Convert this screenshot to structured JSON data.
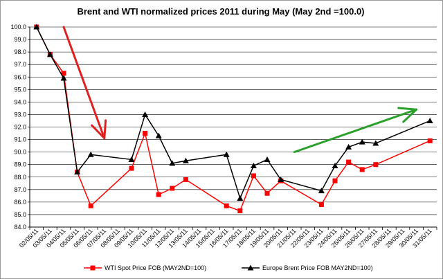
{
  "chart_data": {
    "type": "line",
    "title": "Brent and WTI normalized prices 2011 during May  (May 2nd =100.0)",
    "xlabel": "",
    "ylabel": "",
    "ylim": [
      84.0,
      100.0
    ],
    "y_ticks": [
      "100.0",
      "99.0",
      "98.0",
      "97.0",
      "96.0",
      "95.0",
      "94.0",
      "93.0",
      "92.0",
      "91.0",
      "90.0",
      "89.0",
      "88.0",
      "87.0",
      "86.0",
      "85.0",
      "84.0"
    ],
    "categories": [
      "02/05/11",
      "03/05/11",
      "04/05/11",
      "05/05/11",
      "06/05/11",
      "07/05/11",
      "08/05/11",
      "09/05/11",
      "10/05/11",
      "11/05/11",
      "12/05/11",
      "13/05/11",
      "14/05/11",
      "15/05/11",
      "16/05/11",
      "17/05/11",
      "18/05/11",
      "19/05/11",
      "20/05/11",
      "21/05/11",
      "22/05/11",
      "23/05/11",
      "24/05/11",
      "25/05/11",
      "26/05/11",
      "27/05/11",
      "28/05/11",
      "29/05/11",
      "30/05/11",
      "31/05/11"
    ],
    "grid": "horizontal",
    "legend_position": "bottom",
    "series": [
      {
        "name": "WTI Spot Price FOB (MAY2ND=100)",
        "color": "#ff0000",
        "marker": "square",
        "points": [
          {
            "x": "02/05/11",
            "y": 100.0
          },
          {
            "x": "03/05/11",
            "y": 97.8
          },
          {
            "x": "04/05/11",
            "y": 96.3
          },
          {
            "x": "05/05/11",
            "y": 88.4
          },
          {
            "x": "06/05/11",
            "y": 85.7
          },
          {
            "x": "09/05/11",
            "y": 88.7
          },
          {
            "x": "10/05/11",
            "y": 91.5
          },
          {
            "x": "11/05/11",
            "y": 86.6
          },
          {
            "x": "12/05/11",
            "y": 87.1
          },
          {
            "x": "13/05/11",
            "y": 87.8
          },
          {
            "x": "16/05/11",
            "y": 85.7
          },
          {
            "x": "17/05/11",
            "y": 85.3
          },
          {
            "x": "18/05/11",
            "y": 88.1
          },
          {
            "x": "19/05/11",
            "y": 86.7
          },
          {
            "x": "20/05/11",
            "y": 87.7
          },
          {
            "x": "23/05/11",
            "y": 85.8
          },
          {
            "x": "24/05/11",
            "y": 87.7
          },
          {
            "x": "25/05/11",
            "y": 89.2
          },
          {
            "x": "26/05/11",
            "y": 88.6
          },
          {
            "x": "27/05/11",
            "y": 89.0
          },
          {
            "x": "31/05/11",
            "y": 90.9
          }
        ]
      },
      {
        "name": "Europe Brent Price FOB MAY2ND=100)",
        "color": "#000000",
        "marker": "triangle",
        "points": [
          {
            "x": "02/05/11",
            "y": 100.0
          },
          {
            "x": "03/05/11",
            "y": 97.8
          },
          {
            "x": "04/05/11",
            "y": 95.9
          },
          {
            "x": "05/05/11",
            "y": 88.4
          },
          {
            "x": "06/05/11",
            "y": 89.8
          },
          {
            "x": "09/05/11",
            "y": 89.4
          },
          {
            "x": "10/05/11",
            "y": 93.0
          },
          {
            "x": "11/05/11",
            "y": 91.3
          },
          {
            "x": "12/05/11",
            "y": 89.1
          },
          {
            "x": "13/05/11",
            "y": 89.3
          },
          {
            "x": "16/05/11",
            "y": 89.8
          },
          {
            "x": "17/05/11",
            "y": 86.3
          },
          {
            "x": "18/05/11",
            "y": 88.9
          },
          {
            "x": "19/05/11",
            "y": 89.4
          },
          {
            "x": "20/05/11",
            "y": 87.8
          },
          {
            "x": "23/05/11",
            "y": 86.9
          },
          {
            "x": "24/05/11",
            "y": 88.9
          },
          {
            "x": "25/05/11",
            "y": 90.4
          },
          {
            "x": "26/05/11",
            "y": 90.8
          },
          {
            "x": "27/05/11",
            "y": 90.7
          },
          {
            "x": "31/05/11",
            "y": 92.5
          }
        ]
      }
    ],
    "annotations": [
      {
        "type": "arrow",
        "color": "#e02020",
        "from": {
          "x": "04/05/11",
          "y": 100.0
        },
        "to": {
          "x": "07/05/11",
          "y": 91.1
        }
      },
      {
        "type": "arrow",
        "color": "#2aa02a",
        "from": {
          "x": "21/05/11",
          "y": 90.0
        },
        "to": {
          "x": "30/05/11",
          "y": 93.4
        }
      }
    ]
  }
}
